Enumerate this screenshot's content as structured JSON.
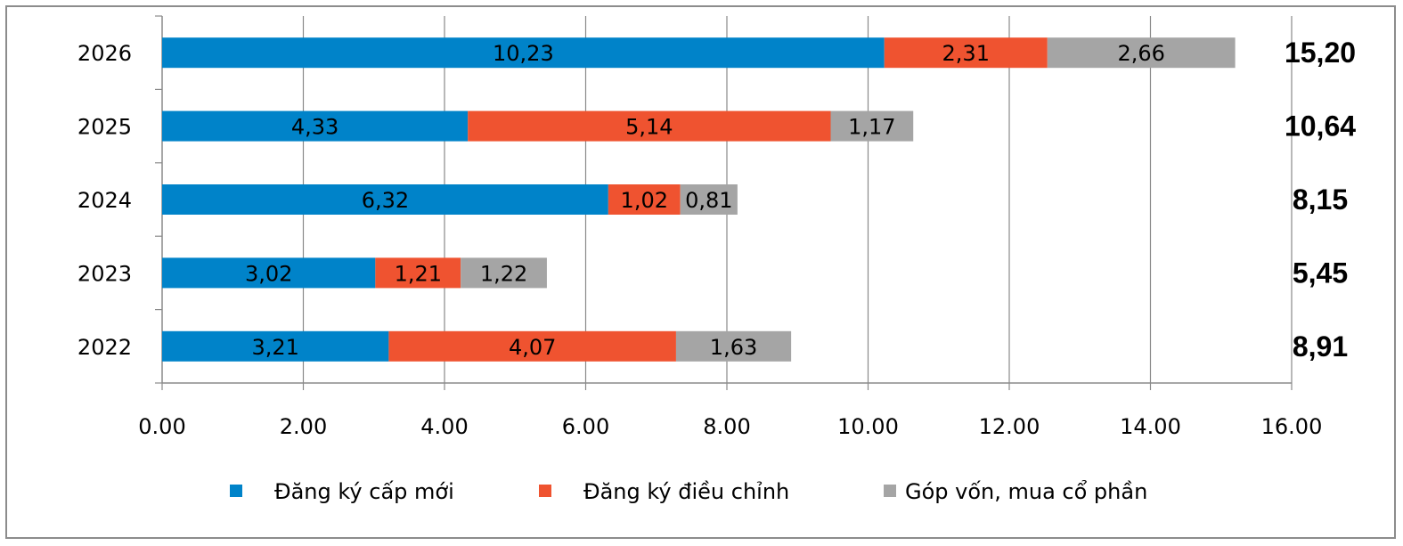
{
  "chart_data": {
    "type": "bar",
    "orientation": "horizontal",
    "stacked": true,
    "title": "",
    "xlabel": "",
    "ylabel": "",
    "categories": [
      "2022",
      "2023",
      "2024",
      "2025",
      "2026"
    ],
    "series": [
      {
        "name": "Đăng ký cấp mới",
        "color": "#0083c9",
        "values": [
          3.21,
          3.02,
          6.32,
          4.33,
          10.23
        ],
        "labels": [
          "3,21",
          "3,02",
          "6,32",
          "4,33",
          "10,23"
        ]
      },
      {
        "name": "Đăng ký điều chỉnh",
        "color": "#ef5330",
        "values": [
          4.07,
          1.21,
          1.02,
          5.14,
          2.31
        ],
        "labels": [
          "4,07",
          "1,21",
          "1,02",
          "5,14",
          "2,31"
        ]
      },
      {
        "name": "Góp vốn, mua cổ phần",
        "color": "#a5a5a5",
        "values": [
          1.63,
          1.22,
          0.81,
          1.17,
          2.66
        ],
        "labels": [
          "1,63",
          "1,22",
          "0,81",
          "1,17",
          "2,66"
        ]
      }
    ],
    "totals": [
      "8,91",
      "5,45",
      "8,15",
      "10,64",
      "15,20"
    ],
    "xlim": [
      0,
      16
    ],
    "x_ticks": [
      "0.00",
      "2.00",
      "4.00",
      "6.00",
      "8.00",
      "10.00",
      "12.00",
      "14.00",
      "16.00"
    ],
    "grid": "vertical",
    "legend_position": "bottom"
  }
}
